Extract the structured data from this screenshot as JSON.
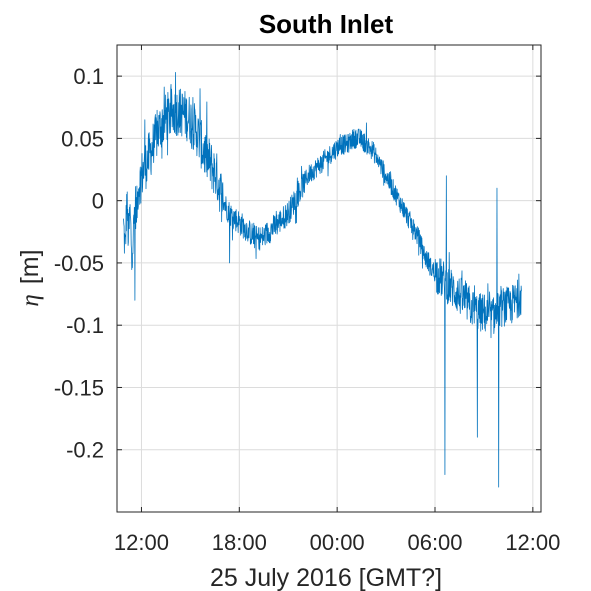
{
  "chart_data": {
    "type": "line",
    "title": "South Inlet",
    "xlabel": "25 July 2016 [GMT?]",
    "ylabel_symbol": "η",
    "ylabel_unit": "[m]",
    "x_unit": "hours since 00:00 25 July 2016",
    "xlim": [
      10.5,
      36.5
    ],
    "ylim": [
      -0.25,
      0.125
    ],
    "x_ticks": [
      {
        "value": 12,
        "label": "12:00"
      },
      {
        "value": 18,
        "label": "18:00"
      },
      {
        "value": 24,
        "label": "00:00"
      },
      {
        "value": 30,
        "label": "06:00"
      },
      {
        "value": 36,
        "label": "12:00"
      }
    ],
    "y_ticks": [
      {
        "value": 0.1,
        "label": "0.1"
      },
      {
        "value": 0.05,
        "label": "0.05"
      },
      {
        "value": 0,
        "label": "0"
      },
      {
        "value": -0.05,
        "label": "-0.05"
      },
      {
        "value": -0.1,
        "label": "-0.1"
      },
      {
        "value": -0.15,
        "label": "-0.15"
      },
      {
        "value": -0.2,
        "label": "-0.2"
      }
    ],
    "grid": true,
    "series": [
      {
        "color": "#0072BD",
        "x": [
          10.9,
          11.0,
          11.1,
          11.2,
          11.3,
          11.4,
          11.5,
          11.6,
          11.7,
          11.8,
          12.0,
          12.3,
          12.6,
          13.0,
          13.4,
          13.8,
          14.2,
          14.6,
          15.0,
          15.4,
          15.8,
          16.2,
          16.6,
          17.0,
          17.4,
          17.8,
          18.2,
          18.6,
          19.0,
          19.4,
          19.8,
          20.2,
          20.6,
          21.0,
          21.4,
          21.8,
          22.2,
          22.6,
          23.0,
          23.4,
          23.8,
          24.2,
          24.6,
          25.0,
          25.4,
          25.8,
          26.2,
          26.6,
          27.0,
          27.4,
          27.8,
          28.2,
          28.6,
          29.0,
          29.4,
          29.8,
          30.2,
          30.6,
          31.0,
          31.4,
          31.8,
          32.2,
          32.6,
          33.0,
          33.4,
          33.8,
          34.2,
          34.6,
          35.0,
          35.3
        ],
        "y": [
          -0.02,
          -0.04,
          0.0,
          -0.03,
          -0.01,
          -0.04,
          -0.03,
          0.0,
          -0.01,
          0.01,
          0.02,
          0.03,
          0.04,
          0.055,
          0.065,
          0.07,
          0.072,
          0.07,
          0.065,
          0.055,
          0.04,
          0.03,
          0.02,
          0.0,
          -0.01,
          -0.015,
          -0.02,
          -0.025,
          -0.03,
          -0.03,
          -0.025,
          -0.02,
          -0.015,
          -0.01,
          0.0,
          0.01,
          0.02,
          0.025,
          0.03,
          0.035,
          0.04,
          0.045,
          0.045,
          0.05,
          0.05,
          0.045,
          0.04,
          0.03,
          0.02,
          0.01,
          0.0,
          -0.01,
          -0.02,
          -0.03,
          -0.045,
          -0.055,
          -0.06,
          -0.065,
          -0.07,
          -0.075,
          -0.08,
          -0.085,
          -0.09,
          -0.09,
          -0.095,
          -0.09,
          -0.085,
          -0.085,
          -0.08,
          -0.075
        ]
      }
    ],
    "spikes": [
      {
        "x": 11.6,
        "y": -0.08
      },
      {
        "x": 12.2,
        "y": 0.065
      },
      {
        "x": 14.1,
        "y": 0.103
      },
      {
        "x": 15.6,
        "y": 0.09
      },
      {
        "x": 17.4,
        "y": -0.05
      },
      {
        "x": 30.6,
        "y": -0.22
      },
      {
        "x": 30.7,
        "y": 0.02
      },
      {
        "x": 32.6,
        "y": -0.19
      },
      {
        "x": 33.8,
        "y": 0.01
      },
      {
        "x": 33.9,
        "y": -0.23
      }
    ]
  }
}
